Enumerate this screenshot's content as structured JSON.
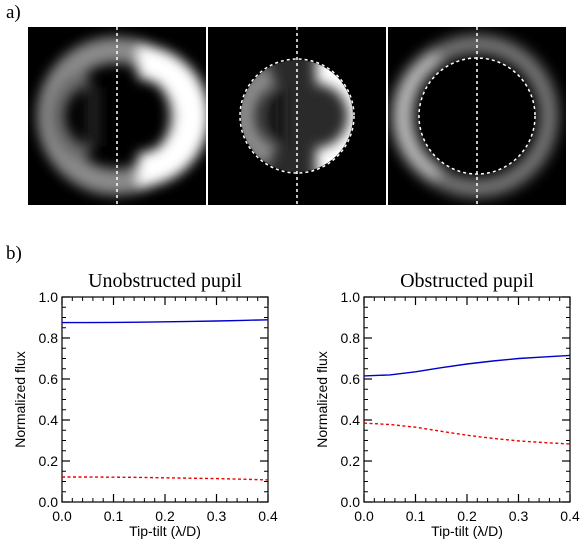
{
  "panel_labels": {
    "a": "a)",
    "b": "b)"
  },
  "images": [
    {
      "name": "unobstructed-psf",
      "mask_circle": false
    },
    {
      "name": "masked-psf",
      "mask_circle": true
    },
    {
      "name": "obstructed-residual",
      "mask_circle": true
    }
  ],
  "chart_data": [
    {
      "type": "line",
      "title": "Unobstructed pupil",
      "xlabel": "Tip-tilt (λ/D)",
      "ylabel": "Normalized flux",
      "xlim": [
        0.0,
        0.4
      ],
      "ylim": [
        0.0,
        1.0
      ],
      "xticks": [
        "0.0",
        "0.1",
        "0.2",
        "0.3",
        "0.4"
      ],
      "yticks": [
        "0.0",
        "0.2",
        "0.4",
        "0.6",
        "0.8",
        "1.0"
      ],
      "grid": false,
      "series": [
        {
          "color": "#0000cc",
          "style": "solid",
          "x": [
            0.0,
            0.05,
            0.1,
            0.15,
            0.2,
            0.25,
            0.3,
            0.35,
            0.4
          ],
          "y": [
            0.875,
            0.875,
            0.876,
            0.877,
            0.879,
            0.881,
            0.883,
            0.886,
            0.889
          ]
        },
        {
          "color": "#ee0000",
          "style": "dashed",
          "x": [
            0.0,
            0.05,
            0.1,
            0.15,
            0.2,
            0.25,
            0.3,
            0.35,
            0.4
          ],
          "y": [
            0.122,
            0.122,
            0.121,
            0.12,
            0.118,
            0.116,
            0.114,
            0.111,
            0.108
          ]
        }
      ]
    },
    {
      "type": "line",
      "title": "Obstructed pupil",
      "xlabel": "Tip-tilt (λ/D)",
      "ylabel": "Normalized flux",
      "xlim": [
        0.0,
        0.4
      ],
      "ylim": [
        0.0,
        1.0
      ],
      "xticks": [
        "0.0",
        "0.1",
        "0.2",
        "0.3",
        "0.4"
      ],
      "yticks": [
        "0.0",
        "0.2",
        "0.4",
        "0.6",
        "0.8",
        "1.0"
      ],
      "grid": false,
      "series": [
        {
          "color": "#0000cc",
          "style": "solid",
          "x": [
            0.0,
            0.05,
            0.1,
            0.15,
            0.2,
            0.25,
            0.3,
            0.35,
            0.4
          ],
          "y": [
            0.615,
            0.62,
            0.635,
            0.655,
            0.673,
            0.688,
            0.7,
            0.708,
            0.715
          ]
        },
        {
          "color": "#ee0000",
          "style": "dashed",
          "x": [
            0.0,
            0.05,
            0.1,
            0.15,
            0.2,
            0.25,
            0.3,
            0.35,
            0.4
          ],
          "y": [
            0.385,
            0.378,
            0.365,
            0.345,
            0.326,
            0.31,
            0.298,
            0.29,
            0.283
          ]
        }
      ]
    }
  ]
}
